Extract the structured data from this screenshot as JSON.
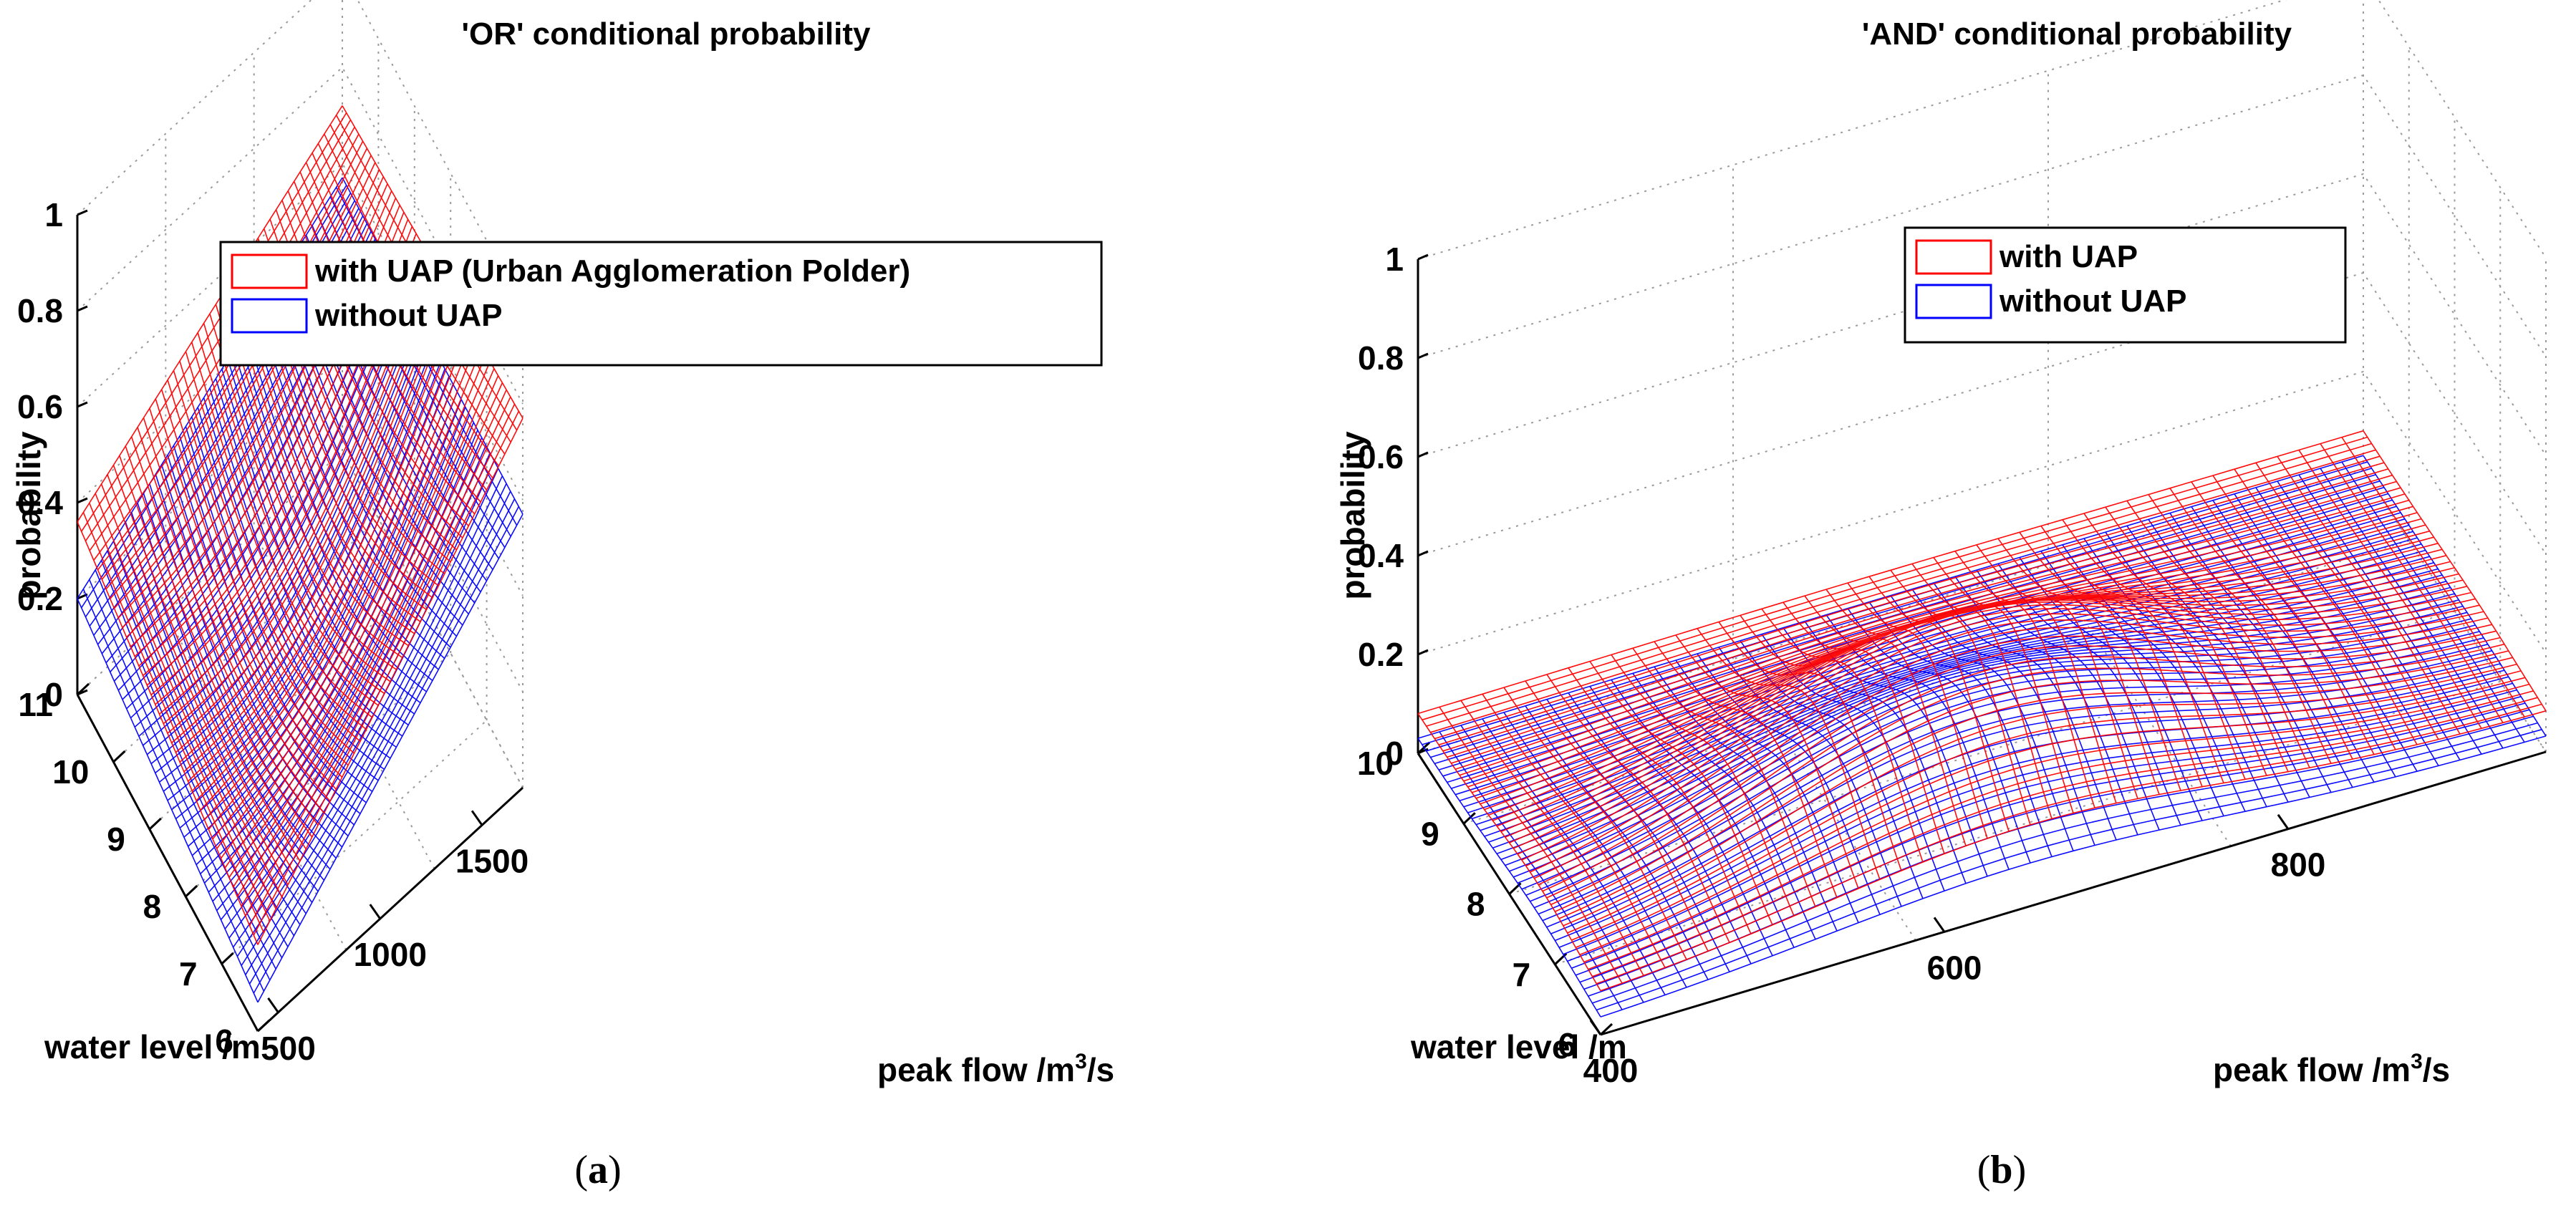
{
  "chart_data": [
    {
      "type": "surface",
      "panel": "a",
      "title": "'OR' conditional probability",
      "xlabel": "water level /m",
      "ylabel": "peak flow /m³/s",
      "zlabel": "probability",
      "x_ticks": [
        "11",
        "10",
        "9",
        "8",
        "7",
        "6"
      ],
      "x_range": [
        6,
        11
      ],
      "y_ticks": [
        "500",
        "1000",
        "1500"
      ],
      "y_range": [
        400,
        1700
      ],
      "z_ticks": [
        "0",
        "0.2",
        "0.4",
        "0.6",
        "0.8",
        "1"
      ],
      "zlim": [
        0,
        1
      ],
      "grid": true,
      "legend": [
        "with UAP (Urban Agglomeration Polder)",
        "without UAP"
      ],
      "legend_position": "top-right",
      "series": [
        {
          "name": "with UAP (Urban Agglomeration Polder)",
          "color": "#ff0000",
          "corners": {
            "far_left": 0.72,
            "near_left": 0.36,
            "near_right": 0.18,
            "far_right": 0.77
          }
        },
        {
          "name": "without UAP",
          "color": "#0000ff",
          "corners": {
            "far_left": 0.57,
            "near_left": 0.2,
            "near_right": 0.06,
            "far_right": 0.57
          }
        }
      ]
    },
    {
      "type": "surface",
      "panel": "b",
      "title": "'AND' conditional probability",
      "xlabel": "water level /m",
      "ylabel": "peak flow /m³/s",
      "zlabel": "probability",
      "x_ticks": [
        "10",
        "9",
        "8",
        "7",
        "6"
      ],
      "x_range": [
        6,
        10
      ],
      "y_ticks": [
        "400",
        "600",
        "800"
      ],
      "y_range": [
        400,
        950
      ],
      "z_ticks": [
        "0",
        "0.2",
        "0.4",
        "0.6",
        "0.8",
        "1"
      ],
      "zlim": [
        0,
        1
      ],
      "grid": true,
      "legend": [
        "with UAP",
        "without UAP"
      ],
      "legend_position": "top-right",
      "series": [
        {
          "name": "with UAP",
          "color": "#ff0000",
          "peak": 0.36,
          "edge": 0.08
        },
        {
          "name": "without UAP",
          "color": "#0000ff",
          "peak": 0.22,
          "edge": 0.03
        }
      ]
    }
  ],
  "captions": {
    "a": "a",
    "b": "b",
    "open": "(",
    "close": ")"
  }
}
